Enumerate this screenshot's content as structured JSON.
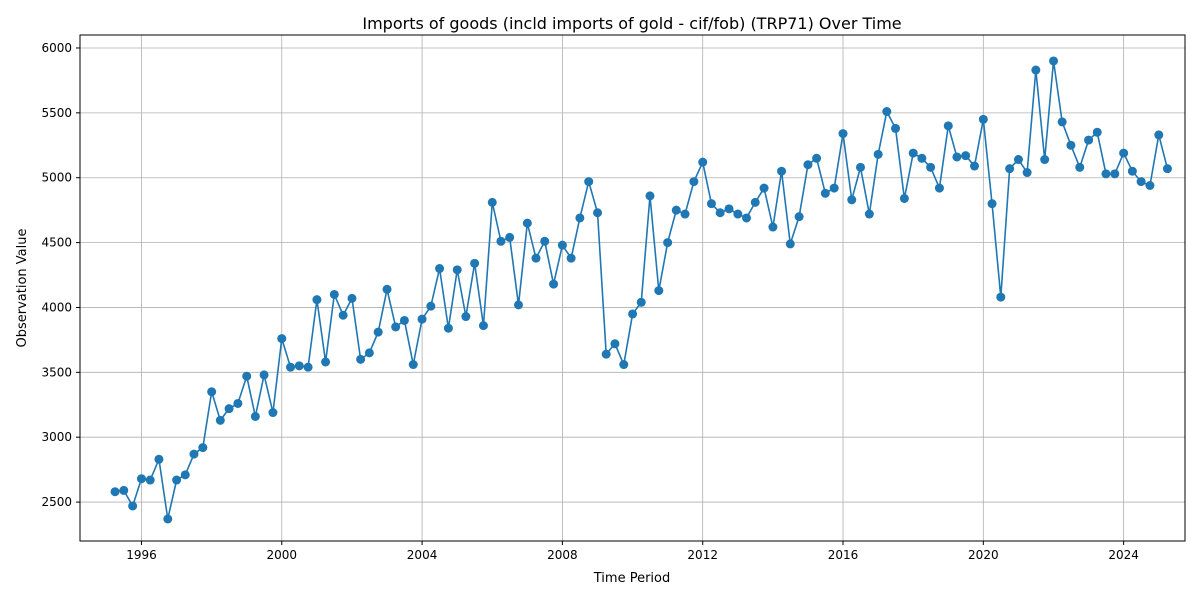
{
  "chart_data": {
    "type": "line",
    "title": "Imports of goods (incld imports of gold - cif/fob) (TRP71) Over Time",
    "xlabel": "Time Period",
    "ylabel": "Observation Value",
    "xlim": [
      "1994-04-01",
      "2025-10-01"
    ],
    "ylim": [
      2200,
      6100
    ],
    "grid": true,
    "color": "#1f77b4",
    "x_ticks": [
      "1996",
      "2000",
      "2004",
      "2008",
      "2012",
      "2016",
      "2020",
      "2024"
    ],
    "y_ticks": [
      2500,
      3000,
      3500,
      4000,
      4500,
      5000,
      5500,
      6000
    ],
    "series": [
      {
        "x": [
          "1995-04-01",
          "1995-07-01",
          "1995-10-01",
          "1996-01-01",
          "1996-04-01",
          "1996-07-01",
          "1996-10-01",
          "1997-01-01",
          "1997-04-01",
          "1997-07-01",
          "1997-10-01",
          "1998-01-01",
          "1998-04-01",
          "1998-07-01",
          "1998-10-01",
          "1999-01-01",
          "1999-04-01",
          "1999-07-01",
          "1999-10-01",
          "2000-01-01",
          "2000-04-01",
          "2000-07-01",
          "2000-10-01",
          "2001-01-01",
          "2001-04-01",
          "2001-07-01",
          "2001-10-01",
          "2002-01-01",
          "2002-04-01",
          "2002-07-01",
          "2002-10-01",
          "2003-01-01",
          "2003-04-01",
          "2003-07-01",
          "2003-10-01",
          "2004-01-01",
          "2004-04-01",
          "2004-07-01",
          "2004-10-01",
          "2005-01-01",
          "2005-04-01",
          "2005-07-01",
          "2005-10-01",
          "2006-01-01",
          "2006-04-01",
          "2006-07-01",
          "2006-10-01",
          "2007-01-01",
          "2007-04-01",
          "2007-07-01",
          "2007-10-01",
          "2008-01-01",
          "2008-04-01",
          "2008-07-01",
          "2008-10-01",
          "2009-01-01",
          "2009-04-01",
          "2009-07-01",
          "2009-10-01",
          "2010-01-01",
          "2010-04-01",
          "2010-07-01",
          "2010-10-01",
          "2011-01-01",
          "2011-04-01",
          "2011-07-01",
          "2011-10-01",
          "2012-01-01",
          "2012-04-01",
          "2012-07-01",
          "2012-10-01",
          "2013-01-01",
          "2013-04-01",
          "2013-07-01",
          "2013-10-01",
          "2014-01-01",
          "2014-04-01",
          "2014-07-01",
          "2014-10-01",
          "2015-01-01",
          "2015-04-01",
          "2015-07-01",
          "2015-10-01",
          "2016-01-01",
          "2016-04-01",
          "2016-07-01",
          "2016-10-01",
          "2017-01-01",
          "2017-04-01",
          "2017-07-01",
          "2017-10-01",
          "2018-01-01",
          "2018-04-01",
          "2018-07-01",
          "2018-10-01",
          "2019-01-01",
          "2019-04-01",
          "2019-07-01",
          "2019-10-01",
          "2020-01-01",
          "2020-04-01",
          "2020-07-01",
          "2020-10-01",
          "2021-01-01",
          "2021-04-01",
          "2021-07-01",
          "2021-10-01",
          "2022-01-01",
          "2022-04-01",
          "2022-07-01",
          "2022-10-01",
          "2023-01-01",
          "2023-04-01",
          "2023-07-01",
          "2023-10-01",
          "2024-01-01",
          "2024-04-01",
          "2024-07-01",
          "2024-10-01",
          "2025-01-01",
          "2025-04-01"
        ],
        "y": [
          2580,
          2590,
          2470,
          2680,
          2670,
          2830,
          2370,
          2670,
          2710,
          2870,
          2920,
          3350,
          3130,
          3220,
          3260,
          3470,
          3160,
          3480,
          3190,
          3760,
          3540,
          3550,
          3540,
          4060,
          3580,
          4100,
          3940,
          4070,
          3600,
          3650,
          3810,
          4140,
          3850,
          3900,
          3560,
          3910,
          4010,
          4300,
          3840,
          4290,
          3930,
          4340,
          3860,
          4810,
          4510,
          4540,
          4020,
          4650,
          4380,
          4510,
          4180,
          4480,
          4380,
          4690,
          4970,
          4730,
          3640,
          3720,
          3560,
          3950,
          4040,
          4860,
          4130,
          4500,
          4750,
          4720,
          4970,
          5120,
          4800,
          4730,
          4760,
          4720,
          4690,
          4810,
          4920,
          4620,
          5050,
          4490,
          4700,
          5100,
          5150,
          4880,
          4920,
          5340,
          4830,
          5080,
          4720,
          5180,
          5510,
          5380,
          4840,
          5190,
          5150,
          5080,
          4920,
          5400,
          5160,
          5170,
          5090,
          5450,
          4800,
          4080,
          5070,
          5140,
          5040,
          5830,
          5140,
          5900,
          5430,
          5250,
          5080,
          5290,
          5350,
          5030,
          5030,
          5190,
          5050,
          4970,
          4940,
          5330,
          5070
        ]
      }
    ]
  }
}
